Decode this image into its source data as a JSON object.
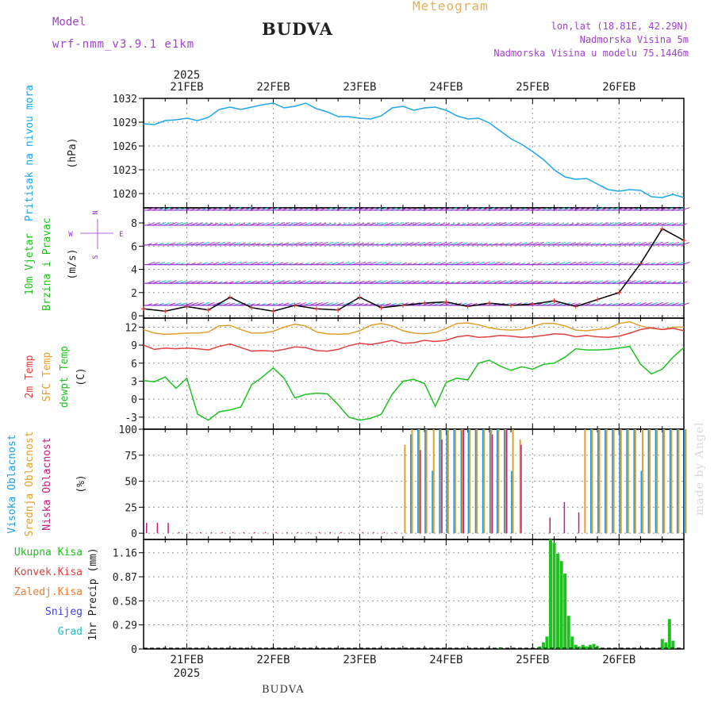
{
  "header": {
    "model_label": "Model",
    "model_name": "wrf-nmm_v3.9.1 e1km",
    "station": "BUDVA",
    "meteogram_label": "Meteogram",
    "lonlat": "lon,lat (18.81E, 42.29N)",
    "altitude": "Nadmorska Visina 5m",
    "model_altitude": "Nadmorska Visina u modelu 75.1446m"
  },
  "footer": {
    "station": "BUDVA",
    "credit": "made by Angel"
  },
  "colors": {
    "pressure": "#1fa6e8",
    "sfc_temp": "#e0a030",
    "t2m": "#e04040",
    "dewpt": "#20c020",
    "high_cloud": "#1e9be6",
    "mid_cloud": "#e0a030",
    "low_cloud": "#c0207a",
    "total_precip": "#20c020",
    "wind_mag": "#9a30d0"
  },
  "chart_data": [
    {
      "id": "pressure",
      "type": "line",
      "ylabel_lines": [
        "Pritisak na nivou mora",
        "(hPa)"
      ],
      "y_ticks": [
        "1032",
        "1029",
        "1026",
        "1023",
        "1020"
      ],
      "ylim": [
        1018.2,
        1032.0
      ],
      "x_hours": [
        0,
        3,
        6,
        9,
        12,
        15,
        18,
        21,
        24,
        27,
        30,
        33,
        36,
        39,
        42,
        45,
        48,
        51,
        54,
        57,
        60,
        63,
        66,
        69,
        72,
        75,
        78,
        81,
        84,
        87,
        90,
        93,
        96,
        99,
        102,
        105,
        108,
        111,
        114,
        117,
        120,
        123,
        126,
        129,
        132,
        135,
        138,
        141,
        144,
        147,
        150
      ],
      "series": [
        {
          "values": [
            1028.8,
            1028.7,
            1029.2,
            1029.3,
            1029.5,
            1029.2,
            1029.6,
            1030.6,
            1030.9,
            1030.6,
            1030.9,
            1031.2,
            1031.4,
            1030.8,
            1031.0,
            1031.4,
            1030.7,
            1030.3,
            1029.7,
            1029.7,
            1029.5,
            1029.4,
            1029.8,
            1030.8,
            1031.0,
            1030.5,
            1030.8,
            1030.9,
            1030.5,
            1029.8,
            1029.4,
            1029.5,
            1028.9,
            1027.9,
            1026.9,
            1026.2,
            1025.3,
            1024.3,
            1023.0,
            1022.1,
            1021.8,
            1021.9,
            1021.2,
            1020.5,
            1020.3,
            1020.5,
            1020.4,
            1019.6,
            1019.5,
            1019.9,
            1019.5
          ]
        }
      ]
    },
    {
      "id": "wind",
      "type": "line",
      "ylabel_lines": [
        "10m Vjetar",
        "Brzina i Pravac",
        "(m/s)"
      ],
      "compass": {
        "north": "N",
        "south": "S",
        "west": "W",
        "east": "E"
      },
      "y_ticks": [
        "8",
        "6",
        "4",
        "2",
        "0"
      ],
      "ylim": [
        -0.2,
        9.3
      ],
      "x_hours": [
        0,
        6,
        12,
        18,
        24,
        30,
        36,
        42,
        48,
        54,
        60,
        66,
        72,
        78,
        84,
        90,
        96,
        102,
        108,
        114,
        120,
        126,
        132,
        138,
        144,
        150
      ],
      "series": [
        {
          "values": [
            0.6,
            0.4,
            0.8,
            0.5,
            1.6,
            0.7,
            0.4,
            0.9,
            0.6,
            0.5,
            1.6,
            0.7,
            0.9,
            1.1,
            1.2,
            0.8,
            1.1,
            0.9,
            1.0,
            1.3,
            0.8,
            1.4,
            2.0,
            4.5,
            7.5,
            6.5
          ]
        }
      ]
    },
    {
      "id": "temperature",
      "type": "line",
      "ylabel_lines": [
        "2m Temp",
        "SFC Temp",
        "dewpt Temp",
        "(C)"
      ],
      "y_ticks": [
        "12",
        "9",
        "6",
        "3",
        "0",
        "-3"
      ],
      "ylim": [
        -5.0,
        13.5
      ],
      "x_hours": [
        0,
        3,
        6,
        9,
        12,
        15,
        18,
        21,
        24,
        27,
        30,
        33,
        36,
        39,
        42,
        45,
        48,
        51,
        54,
        57,
        60,
        63,
        66,
        69,
        72,
        75,
        78,
        81,
        84,
        87,
        90,
        93,
        96,
        99,
        102,
        105,
        108,
        111,
        114,
        117,
        120,
        123,
        126,
        129,
        132,
        135,
        138,
        141,
        144,
        147,
        150
      ],
      "series": [
        {
          "name": "SFC Temp",
          "values": [
            11.6,
            11.0,
            10.8,
            10.9,
            11.0,
            11.0,
            11.2,
            12.2,
            12.3,
            11.6,
            11.0,
            11.0,
            11.3,
            12.0,
            12.5,
            12.2,
            11.2,
            10.9,
            10.8,
            10.9,
            11.4,
            12.3,
            12.6,
            12.2,
            11.4,
            11.0,
            10.9,
            11.1,
            11.8,
            12.6,
            12.7,
            12.4,
            11.9,
            11.6,
            11.5,
            11.6,
            12.1,
            12.6,
            12.6,
            12.2,
            11.5,
            11.4,
            11.6,
            11.8,
            12.6,
            12.9,
            12.2,
            11.8,
            11.6,
            12.0,
            12.0
          ]
        },
        {
          "name": "2m Temp",
          "values": [
            9.0,
            8.3,
            8.5,
            8.4,
            8.5,
            8.4,
            8.2,
            8.8,
            9.2,
            8.6,
            8.0,
            8.1,
            8.0,
            8.3,
            8.7,
            8.6,
            8.1,
            8.0,
            8.3,
            8.9,
            9.3,
            9.1,
            9.4,
            9.8,
            9.3,
            9.4,
            9.8,
            9.6,
            9.8,
            10.4,
            10.6,
            10.3,
            10.4,
            10.6,
            10.5,
            10.3,
            10.4,
            10.6,
            10.9,
            10.8,
            10.4,
            10.6,
            10.4,
            10.3,
            10.5,
            11.0,
            11.6,
            11.9,
            11.6,
            11.8,
            11.4
          ]
        },
        {
          "name": "dewpt Temp",
          "values": [
            3.1,
            2.9,
            3.7,
            1.8,
            3.5,
            -2.5,
            -3.5,
            -2.1,
            -1.8,
            -1.3,
            2.4,
            3.7,
            5.2,
            3.5,
            0.2,
            0.8,
            1.0,
            0.9,
            -0.9,
            -3.0,
            -3.5,
            -3.2,
            -2.5,
            0.8,
            3.0,
            3.3,
            2.6,
            -1.2,
            2.8,
            3.5,
            3.2,
            6.0,
            6.5,
            5.5,
            4.8,
            5.4,
            5.0,
            5.8,
            6.0,
            7.0,
            8.4,
            8.2,
            8.2,
            8.3,
            8.5,
            8.8,
            5.8,
            4.2,
            5.0,
            7.0,
            8.6
          ]
        }
      ]
    },
    {
      "id": "clouds",
      "type": "bar",
      "ylabel_lines": [
        "Visoka Oblacnost",
        "Srednja Oblacnost",
        "Niska Oblacnost",
        "(%)"
      ],
      "y_ticks": [
        "100",
        "75",
        "50",
        "25",
        "0"
      ],
      "ylim": [
        -6,
        100
      ],
      "x_hours": [
        0,
        3,
        6,
        9,
        12,
        15,
        18,
        21,
        24,
        27,
        30,
        33,
        36,
        39,
        42,
        45,
        48,
        51,
        54,
        57,
        60,
        63,
        66,
        69,
        72,
        74,
        76,
        78,
        80,
        82,
        84,
        86,
        88,
        90,
        92,
        94,
        96,
        98,
        100,
        102,
        104,
        106,
        108,
        110,
        112,
        114,
        116,
        118,
        120,
        122,
        124,
        126,
        128,
        130,
        132,
        134,
        136,
        138,
        140,
        142,
        144,
        146,
        148,
        150
      ],
      "series": [
        {
          "name": "Visoka Oblacnost",
          "values": [
            0,
            0,
            0,
            0,
            0,
            0,
            0,
            0,
            0,
            0,
            0,
            0,
            0,
            0,
            0,
            0,
            0,
            0,
            0,
            0,
            0,
            0,
            0,
            0,
            0,
            95,
            100,
            100,
            60,
            100,
            100,
            100,
            100,
            100,
            100,
            100,
            100,
            100,
            100,
            60,
            0,
            0,
            0,
            0,
            0,
            0,
            0,
            0,
            0,
            0,
            100,
            100,
            100,
            100,
            100,
            100,
            100,
            60,
            100,
            100,
            100,
            100,
            100,
            100
          ]
        },
        {
          "name": "Srednja Oblacnost",
          "values": [
            0,
            0,
            0,
            0,
            0,
            0,
            0,
            0,
            0,
            0,
            0,
            0,
            0,
            0,
            0,
            0,
            0,
            0,
            0,
            0,
            0,
            0,
            0,
            0,
            85,
            100,
            100,
            100,
            100,
            100,
            100,
            100,
            100,
            100,
            100,
            100,
            100,
            100,
            100,
            100,
            90,
            0,
            0,
            0,
            0,
            0,
            0,
            0,
            0,
            100,
            100,
            100,
            100,
            100,
            100,
            100,
            100,
            100,
            100,
            100,
            100,
            100,
            100,
            100
          ]
        },
        {
          "name": "Niska Oblacnost",
          "values": [
            10,
            10,
            10,
            1,
            1,
            1,
            1,
            1,
            1,
            1,
            1,
            1,
            1,
            1,
            1,
            1,
            1,
            1,
            1,
            1,
            1,
            1,
            1,
            1,
            0,
            0,
            80,
            0,
            0,
            90,
            0,
            0,
            100,
            0,
            0,
            0,
            95,
            0,
            100,
            0,
            85,
            0,
            0,
            0,
            15,
            0,
            30,
            0,
            20,
            0,
            0,
            0,
            0,
            0,
            0,
            0,
            0,
            0,
            0,
            0,
            0,
            0,
            0,
            0
          ]
        }
      ]
    },
    {
      "id": "precip",
      "type": "bar",
      "ylabel": "1hr Precip (mm)",
      "legend": [
        "Ukupna Kisa",
        "Konvek.Kisa",
        "Zaledj.Kisa",
        "Snijeg",
        "Grad"
      ],
      "legend_colors": [
        "#20c020",
        "#e04040",
        "#f07a30",
        "#4040e0",
        "#20c0c0"
      ],
      "y_ticks": [
        "1.16",
        "0.87",
        "0.58",
        "0.29",
        "0"
      ],
      "ylim": [
        0,
        1.32
      ],
      "x_hours": [
        99,
        110,
        111,
        112,
        113,
        114,
        115,
        116,
        117,
        118,
        119,
        120,
        121,
        122,
        123,
        124,
        125,
        126,
        144,
        145,
        146,
        147
      ],
      "series": [
        {
          "name": "Ukupna Kisa",
          "values": [
            0.02,
            0.03,
            0.08,
            0.15,
            1.32,
            1.28,
            1.15,
            1.06,
            0.91,
            0.4,
            0.15,
            0.05,
            0.03,
            0.05,
            0.03,
            0.05,
            0.06,
            0.03,
            0.12,
            0.08,
            0.36,
            0.1
          ]
        }
      ]
    }
  ],
  "time_axis": {
    "year": "2025",
    "day_labels": [
      "21FEB",
      "22FEB",
      "23FEB",
      "24FEB",
      "25FEB",
      "26FEB"
    ],
    "day_hours": [
      12,
      36,
      60,
      84,
      108,
      132
    ]
  }
}
